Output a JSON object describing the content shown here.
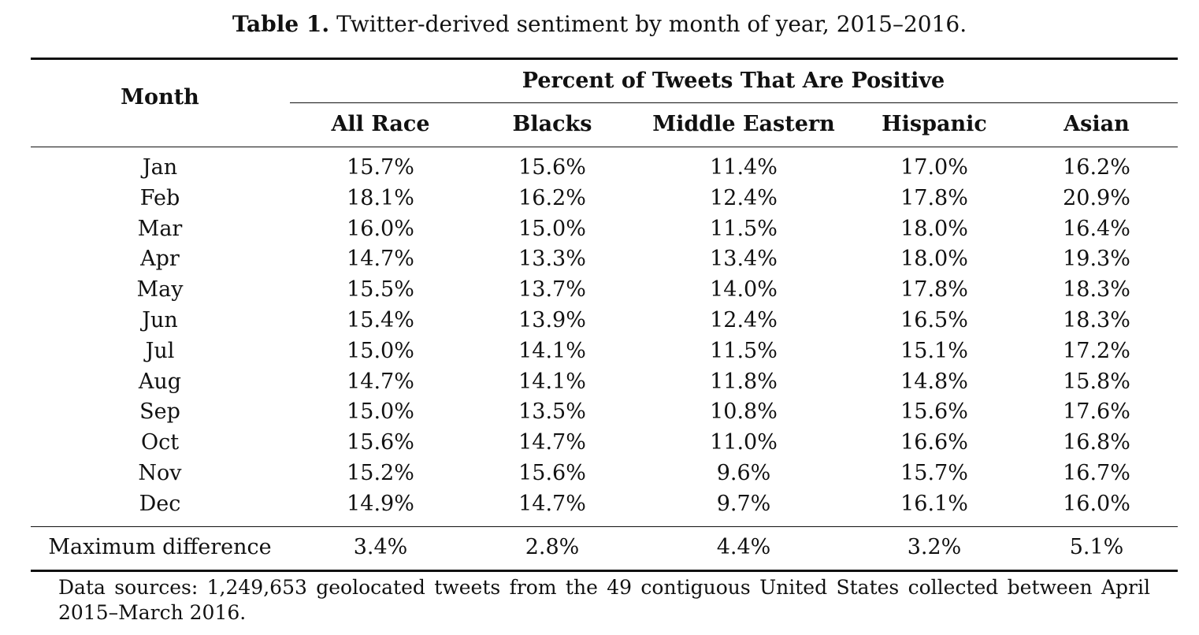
{
  "caption": {
    "label": "Table 1.",
    "text": "Twitter-derived sentiment by month of year, 2015–2016."
  },
  "table": {
    "row_header": "Month",
    "group_header": "Percent of Tweets That Are Positive",
    "columns": [
      "All Race",
      "Blacks",
      "Middle Eastern",
      "Hispanic",
      "Asian"
    ],
    "rows": [
      {
        "month": "Jan",
        "values": [
          "15.7%",
          "15.6%",
          "11.4%",
          "17.0%",
          "16.2%"
        ]
      },
      {
        "month": "Feb",
        "values": [
          "18.1%",
          "16.2%",
          "12.4%",
          "17.8%",
          "20.9%"
        ]
      },
      {
        "month": "Mar",
        "values": [
          "16.0%",
          "15.0%",
          "11.5%",
          "18.0%",
          "16.4%"
        ]
      },
      {
        "month": "Apr",
        "values": [
          "14.7%",
          "13.3%",
          "13.4%",
          "18.0%",
          "19.3%"
        ]
      },
      {
        "month": "May",
        "values": [
          "15.5%",
          "13.7%",
          "14.0%",
          "17.8%",
          "18.3%"
        ]
      },
      {
        "month": "Jun",
        "values": [
          "15.4%",
          "13.9%",
          "12.4%",
          "16.5%",
          "18.3%"
        ]
      },
      {
        "month": "Jul",
        "values": [
          "15.0%",
          "14.1%",
          "11.5%",
          "15.1%",
          "17.2%"
        ]
      },
      {
        "month": "Aug",
        "values": [
          "14.7%",
          "14.1%",
          "11.8%",
          "14.8%",
          "15.8%"
        ]
      },
      {
        "month": "Sep",
        "values": [
          "15.0%",
          "13.5%",
          "10.8%",
          "15.6%",
          "17.6%"
        ]
      },
      {
        "month": "Oct",
        "values": [
          "15.6%",
          "14.7%",
          "11.0%",
          "16.6%",
          "16.8%"
        ]
      },
      {
        "month": "Nov",
        "values": [
          "15.2%",
          "15.6%",
          "9.6%",
          "15.7%",
          "16.7%"
        ]
      },
      {
        "month": "Dec",
        "values": [
          "14.9%",
          "14.7%",
          "9.7%",
          "16.1%",
          "16.0%"
        ]
      }
    ],
    "summary": {
      "label": "Maximum difference",
      "values": [
        "3.4%",
        "2.8%",
        "4.4%",
        "3.2%",
        "5.1%"
      ]
    }
  },
  "footnote": "Data sources: 1,249,653 geolocated tweets from the 49 contiguous United States collected between April 2015–March 2016."
}
